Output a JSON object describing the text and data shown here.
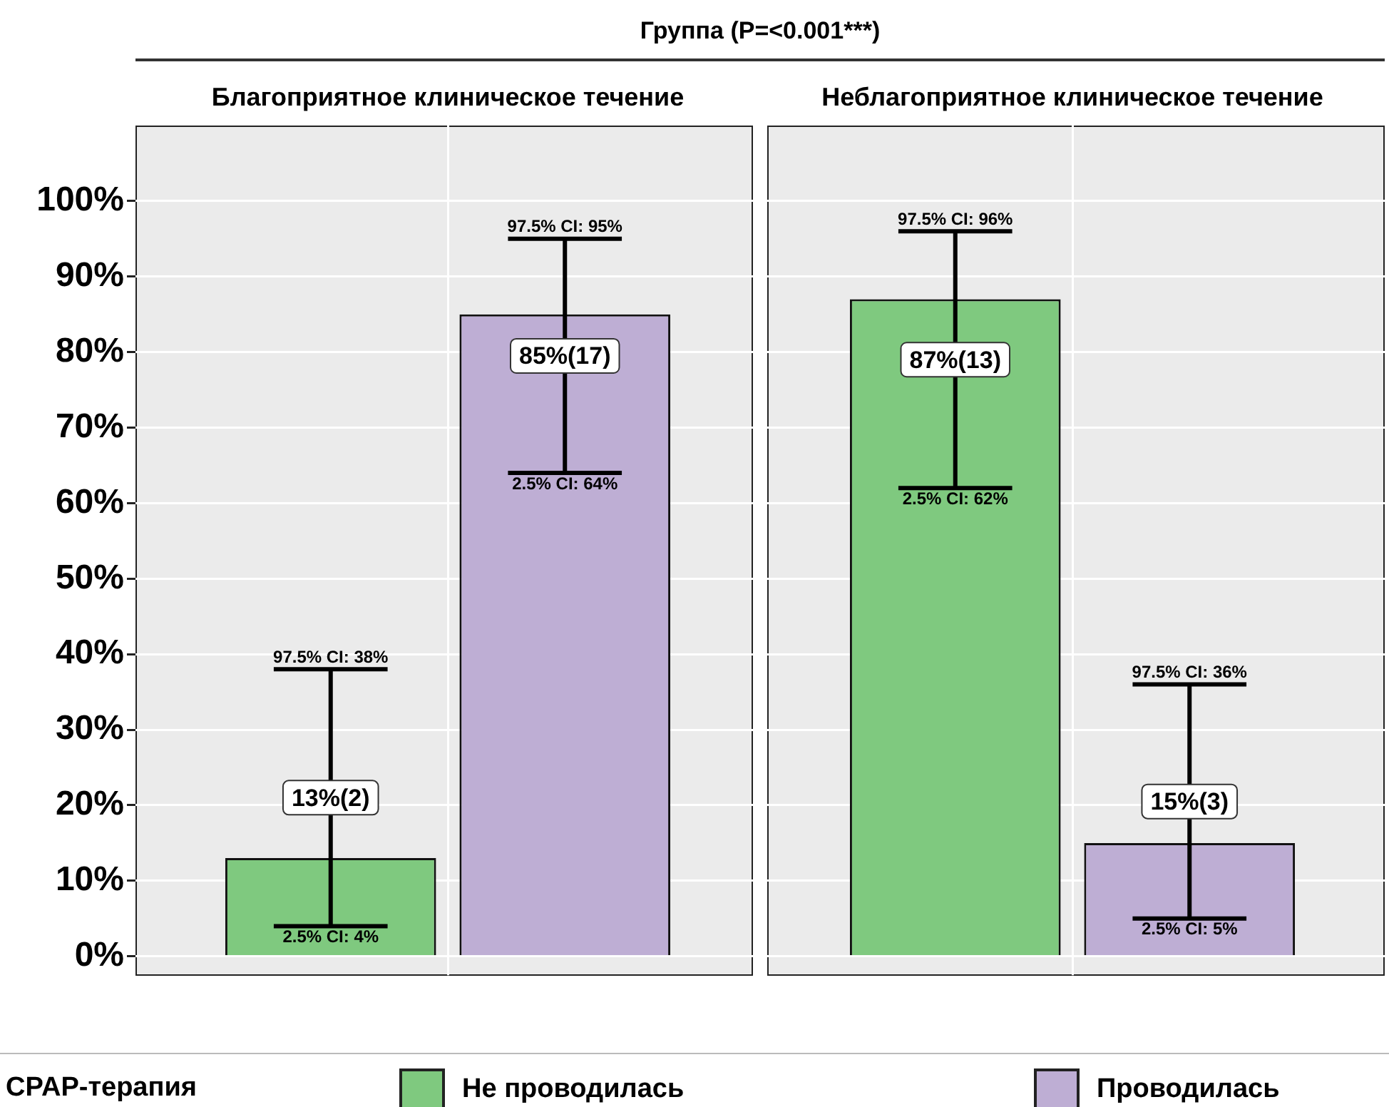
{
  "chart_data": {
    "type": "bar",
    "title": "Группа (P=<0.001***)",
    "categories": [
      "Благоприятное клиническое течение",
      "Неблагоприятное клиническое течение"
    ],
    "series": [
      {
        "name": "Не проводилась",
        "color": "#7fc97f",
        "values": [
          13,
          87
        ],
        "errors": [
          [
            4,
            38
          ],
          [
            62,
            96
          ]
        ],
        "value_labels": [
          "13%(2)",
          "87%(13)"
        ]
      },
      {
        "name": "Проводилась",
        "color": "#beaed4",
        "values": [
          85,
          15
        ],
        "errors": [
          [
            64,
            95
          ],
          [
            5,
            36
          ]
        ],
        "value_labels": [
          "85%(17)",
          "15%(3)"
        ]
      }
    ],
    "ylim": [
      -2.5,
      110
    ],
    "yticks": [
      {
        "value": 0,
        "label": "0%"
      },
      {
        "value": 10,
        "label": "10%"
      },
      {
        "value": 20,
        "label": "20%"
      },
      {
        "value": 30,
        "label": "30%"
      },
      {
        "value": 40,
        "label": "40%"
      },
      {
        "value": 50,
        "label": "50%"
      },
      {
        "value": 60,
        "label": "60%"
      },
      {
        "value": 70,
        "label": "70%"
      },
      {
        "value": 80,
        "label": "80%"
      },
      {
        "value": 90,
        "label": "90%"
      },
      {
        "value": 100,
        "label": "100%"
      }
    ],
    "annotations": [
      {
        "text": "97.5% CI: 38%",
        "y": 38
      },
      {
        "text": "2.5% CI: 4%",
        "y": 4
      },
      {
        "text": "97.5% CI: 95%",
        "y": 95
      },
      {
        "text": "2.5% CI: 64%",
        "y": 64
      },
      {
        "text": "97.5% CI: 96%",
        "y": 96
      },
      {
        "text": "2.5% CI: 62%",
        "y": 62
      },
      {
        "text": "97.5% CI: 36%",
        "y": 36
      },
      {
        "text": "2.5% CI: 5%",
        "y": 5
      }
    ],
    "grid": true,
    "legend": "bottom",
    "legend_title": "CPAP-терапия"
  }
}
